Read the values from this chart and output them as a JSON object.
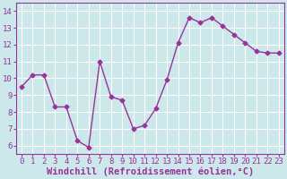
{
  "x": [
    0,
    1,
    2,
    3,
    4,
    5,
    6,
    7,
    8,
    9,
    10,
    11,
    12,
    13,
    14,
    15,
    16,
    17,
    18,
    19,
    20,
    21,
    22,
    23
  ],
  "y": [
    9.5,
    10.2,
    10.2,
    8.3,
    8.3,
    6.3,
    5.9,
    11.0,
    8.9,
    8.7,
    7.0,
    7.2,
    8.2,
    9.9,
    12.1,
    13.6,
    13.3,
    13.6,
    13.1,
    12.6,
    12.1,
    11.6,
    11.5,
    11.5
  ],
  "line_color": "#993399",
  "marker": "D",
  "marker_size": 2.5,
  "bg_color": "#cce8ea",
  "grid_color": "#ffffff",
  "xlabel": "Windchill (Refroidissement éolien,°C)",
  "ylim": [
    5.5,
    14.5
  ],
  "yticks": [
    6,
    7,
    8,
    9,
    10,
    11,
    12,
    13,
    14
  ],
  "xticks": [
    0,
    1,
    2,
    3,
    4,
    5,
    6,
    7,
    8,
    9,
    10,
    11,
    12,
    13,
    14,
    15,
    16,
    17,
    18,
    19,
    20,
    21,
    22,
    23
  ],
  "tick_fontsize": 6.5,
  "xlabel_fontsize": 7.5,
  "spine_color": "#993399",
  "tick_color": "#993399",
  "label_color": "#993399"
}
